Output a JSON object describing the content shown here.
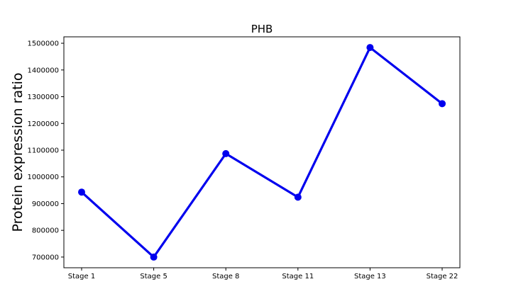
{
  "chart_data": {
    "type": "line",
    "title": "PHB",
    "xlabel": "",
    "ylabel": "Protein expression ratio",
    "categories": [
      "Stage 1",
      "Stage 5",
      "Stage 8",
      "Stage 11",
      "Stage 13",
      "Stage 22"
    ],
    "series": [
      {
        "values": [
          943000,
          700000,
          1087000,
          924000,
          1484000,
          1274000
        ],
        "color": "#0000ee",
        "marker": "circle"
      }
    ],
    "yticks": [
      700000,
      800000,
      900000,
      1000000,
      1100000,
      1200000,
      1300000,
      1400000,
      1500000
    ],
    "ytick_labels": [
      "700000",
      "800000",
      "900000",
      "1000000",
      "1100000",
      "1200000",
      "1300000",
      "1400000",
      "1500000"
    ],
    "ylim": [
      660000,
      1524000
    ],
    "grid": false,
    "legend": "none"
  }
}
